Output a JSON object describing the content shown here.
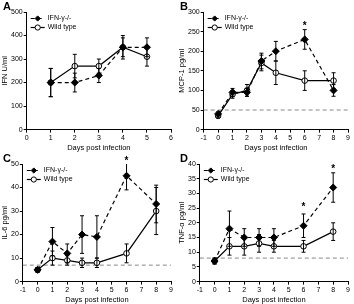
{
  "chart_data": [
    {
      "type": "line",
      "title": "A",
      "x_label": "Days post infection",
      "y_label": "IFN U/ml",
      "x": [
        1,
        2,
        3,
        4,
        5
      ],
      "xlim": [
        0,
        6
      ],
      "xticks": [
        0,
        1,
        2,
        3,
        4,
        5,
        6
      ],
      "ylim": [
        0,
        500
      ],
      "yticks": [
        0,
        100,
        200,
        300,
        400,
        500
      ],
      "grid": false,
      "legend": "upper left",
      "series": [
        {
          "name": "IFN-γ-/-",
          "color": "#000000",
          "marker": "diamond",
          "line_style": "dashed",
          "values": [
            200,
            200,
            230,
            350,
            350
          ],
          "errors": [
            60,
            40,
            30,
            50,
            40
          ]
        },
        {
          "name": "Wild type",
          "color": "#000000",
          "marker": "open_circle",
          "line_style": "solid",
          "values": [
            200,
            270,
            270,
            350,
            310
          ],
          "errors": [
            60,
            50,
            30,
            40,
            40
          ]
        }
      ]
    },
    {
      "type": "line",
      "title": "B",
      "x_label": "Days post infection",
      "y_label": "MCP-1 pg/ml",
      "x": [
        0,
        1,
        2,
        3,
        4,
        6,
        8
      ],
      "xlim": [
        -1,
        9
      ],
      "xticks": [
        -1,
        0,
        1,
        2,
        3,
        4,
        5,
        6,
        7,
        8,
        9
      ],
      "ylim": [
        0,
        300
      ],
      "yticks": [
        0,
        50,
        100,
        150,
        200,
        250,
        300
      ],
      "grid": false,
      "legend": "upper left",
      "baseline": 50,
      "annotations": [
        {
          "text": "*",
          "x": 6,
          "y": 270
        }
      ],
      "series": [
        {
          "name": "IFN-γ-/-",
          "color": "#000000",
          "marker": "diamond",
          "line_style": "dashed",
          "values": [
            40,
            95,
            95,
            175,
            200,
            230,
            100
          ],
          "errors": [
            5,
            10,
            10,
            20,
            25,
            25,
            15
          ]
        },
        {
          "name": "Wild type",
          "color": "#000000",
          "marker": "open_circle",
          "line_style": "solid",
          "values": [
            35,
            90,
            100,
            170,
            145,
            125,
            125
          ],
          "errors": [
            5,
            10,
            15,
            20,
            30,
            25,
            20
          ]
        }
      ]
    },
    {
      "type": "line",
      "title": "C",
      "x_label": "Days post infection",
      "y_label": "IL-6 pg/ml",
      "x": [
        0,
        1,
        2,
        3,
        4,
        6,
        8
      ],
      "xlim": [
        -1,
        9
      ],
      "xticks": [
        -1,
        0,
        1,
        2,
        3,
        4,
        5,
        6,
        7,
        8,
        9
      ],
      "ylim": [
        0,
        50
      ],
      "yticks": [
        0,
        10,
        20,
        30,
        40,
        50
      ],
      "grid": false,
      "legend": "upper left",
      "baseline": 7,
      "annotations": [
        {
          "text": "*",
          "x": 6,
          "y": 52
        }
      ],
      "series": [
        {
          "name": "IFN-γ-/-",
          "color": "#000000",
          "marker": "diamond",
          "line_style": "dashed",
          "values": [
            5,
            17,
            12,
            20,
            19,
            45,
            33
          ],
          "errors": [
            1,
            6,
            4,
            8,
            9,
            6,
            8
          ]
        },
        {
          "name": "Wild type",
          "color": "#000000",
          "marker": "open_circle",
          "line_style": "solid",
          "values": [
            5,
            10,
            9,
            8,
            8,
            12,
            30
          ],
          "errors": [
            1,
            3,
            2,
            2,
            2,
            4,
            10
          ]
        }
      ]
    },
    {
      "type": "line",
      "title": "D",
      "x_label": "Days post infection",
      "y_label": "TNF-α pg/ml",
      "x": [
        0,
        1,
        2,
        3,
        4,
        6,
        8
      ],
      "xlim": [
        -1,
        9
      ],
      "xticks": [
        -1,
        0,
        1,
        2,
        3,
        4,
        5,
        6,
        7,
        8,
        9
      ],
      "ylim": [
        0,
        40
      ],
      "yticks": [
        0,
        5,
        10,
        15,
        20,
        25,
        30,
        35,
        40
      ],
      "grid": false,
      "legend": "upper left",
      "baseline": 8,
      "annotations": [
        {
          "text": "*",
          "x": 6,
          "y": 26
        },
        {
          "text": "*",
          "x": 8,
          "y": 39
        }
      ],
      "series": [
        {
          "name": "IFN-γ-/-",
          "color": "#000000",
          "marker": "diamond",
          "line_style": "dashed",
          "values": [
            7,
            18,
            15,
            15,
            15,
            19,
            32
          ],
          "errors": [
            1,
            6,
            3,
            3,
            3,
            4,
            5
          ]
        },
        {
          "name": "Wild type",
          "color": "#000000",
          "marker": "open_circle",
          "line_style": "solid",
          "values": [
            7,
            12,
            12,
            13,
            12,
            12,
            17
          ],
          "errors": [
            1,
            3,
            3,
            3,
            2,
            2,
            3
          ]
        }
      ]
    }
  ]
}
